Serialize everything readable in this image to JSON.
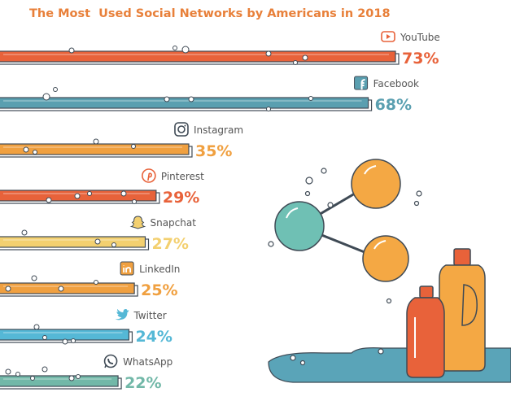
{
  "colors": {
    "title": "#e8803a",
    "red_orange": "#e8623a",
    "teal": "#5a9fb0",
    "orange": "#f0a040",
    "yellow": "#f3d070",
    "blue": "#55b8d6",
    "green": "#72b8a8",
    "outline": "#3f4a55"
  },
  "chart_data": {
    "type": "bar",
    "orientation": "horizontal",
    "title": "The Most  Used Social Networks by Americans in 2018",
    "categories": [
      "YouTube",
      "Facebook",
      "Instagram",
      "Pinterest",
      "Snapchat",
      "LinkedIn",
      "Twitter",
      "WhatsApp"
    ],
    "values": [
      73,
      68,
      35,
      29,
      27,
      25,
      24,
      22
    ],
    "value_labels": [
      "73%",
      "68%",
      "35%",
      "29%",
      "27%",
      "25%",
      "24%",
      "22%"
    ],
    "icons": [
      "youtube-icon",
      "facebook-icon",
      "instagram-icon",
      "pinterest-icon",
      "snapchat-icon",
      "linkedin-icon",
      "twitter-icon",
      "whatsapp-icon"
    ],
    "bar_colors": [
      "#e8623a",
      "#5a9fb0",
      "#f0a040",
      "#e8623a",
      "#f3d070",
      "#f0a040",
      "#55b8d6",
      "#72b8a8"
    ],
    "label_colors": [
      "#e8623a",
      "#5a9fb0",
      "#f0a040",
      "#e8623a",
      "#f3d070",
      "#f0a040",
      "#55b8d6",
      "#72b8a8"
    ],
    "xlim": [
      0,
      100
    ],
    "grid": false,
    "legend": "none"
  }
}
